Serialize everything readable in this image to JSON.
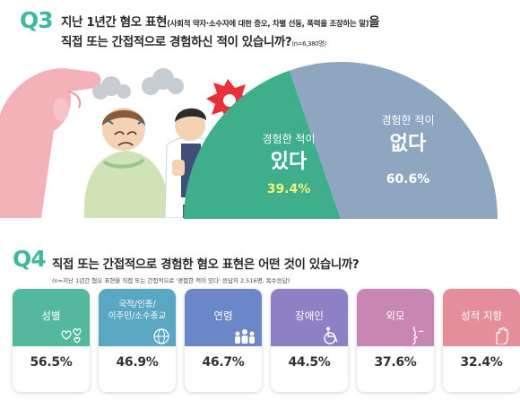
{
  "q3": {
    "label": "Q3",
    "title_main": "지난 1년간 혐오 표현",
    "title_paren": "(사회적 약자·소수자에 대한 증오, 차별 선동, 폭력을 조장하는 말)",
    "title_tail": "을",
    "line2_main": "직접 또는 간접적으로 경험하신 적이 있습니까?",
    "line2_n": "(n=6,380명)"
  },
  "chart_data": [
    {
      "type": "pie",
      "title": "",
      "slices": [
        {
          "label": "경험한 적이",
          "word": "있다",
          "value": 39.4,
          "value_text": "39.4%",
          "color": "#3fae8a"
        },
        {
          "label": "경험한 적이",
          "word": "없다",
          "value": 60.6,
          "value_text": "60.6%",
          "color": "#8fa6c1"
        }
      ],
      "shape": "half-donut"
    },
    {
      "type": "bar",
      "title": "직접 또는 간접적으로 경험한 혐오 표현은 어떤 것이 있습니까?",
      "note": "(n=지난 1년간 혐오 표현을 직접 또는 간접적으로 '경험한 적이 있다' 응답자 2,516명, 복수응답)",
      "categories": [
        "성별",
        "국적/인종/ 이주민/소수종교",
        "연령",
        "장애인",
        "외모",
        "성적 지향"
      ],
      "values": [
        56.5,
        46.9,
        46.7,
        44.5,
        37.6,
        32.4
      ],
      "value_texts": [
        "56.5%",
        "46.9%",
        "46.7%",
        "44.5%",
        "37.6%",
        "32.4%"
      ],
      "colors": [
        "#54b89c",
        "#5aa7c4",
        "#6b87c8",
        "#8e80c4",
        "#c886b3",
        "#e58e9b"
      ]
    }
  ],
  "q4": {
    "label": "Q4",
    "title": "직접 또는 간접적으로 경험한 혐오 표현은 어떤 것이 있습니까?",
    "note": "(n=지난 1년간 혐오 표현을 직접 또는 간접적으로 '경험한 적이 있다' 응답자 2,516명, 복수응답)"
  },
  "cards": [
    {
      "line1": "성별",
      "line2": "",
      "value": "56.5%",
      "color": "#54b89c",
      "icon": "hearts-icon"
    },
    {
      "line1": "국적/인종/",
      "line2": "이주민/소수종교",
      "value": "46.9%",
      "color": "#5aa7c4",
      "icon": "globe-icon"
    },
    {
      "line1": "연령",
      "line2": "",
      "value": "46.7%",
      "color": "#6b87c8",
      "icon": "people-icon"
    },
    {
      "line1": "장애인",
      "line2": "",
      "value": "44.5%",
      "color": "#8e80c4",
      "icon": "wheelchair-icon"
    },
    {
      "line1": "외모",
      "line2": "",
      "value": "37.6%",
      "color": "#c886b3",
      "icon": "face-icon"
    },
    {
      "line1": "성적 지향",
      "line2": "",
      "value": "32.4%",
      "color": "#e58e9b",
      "icon": "hand-icon"
    }
  ]
}
